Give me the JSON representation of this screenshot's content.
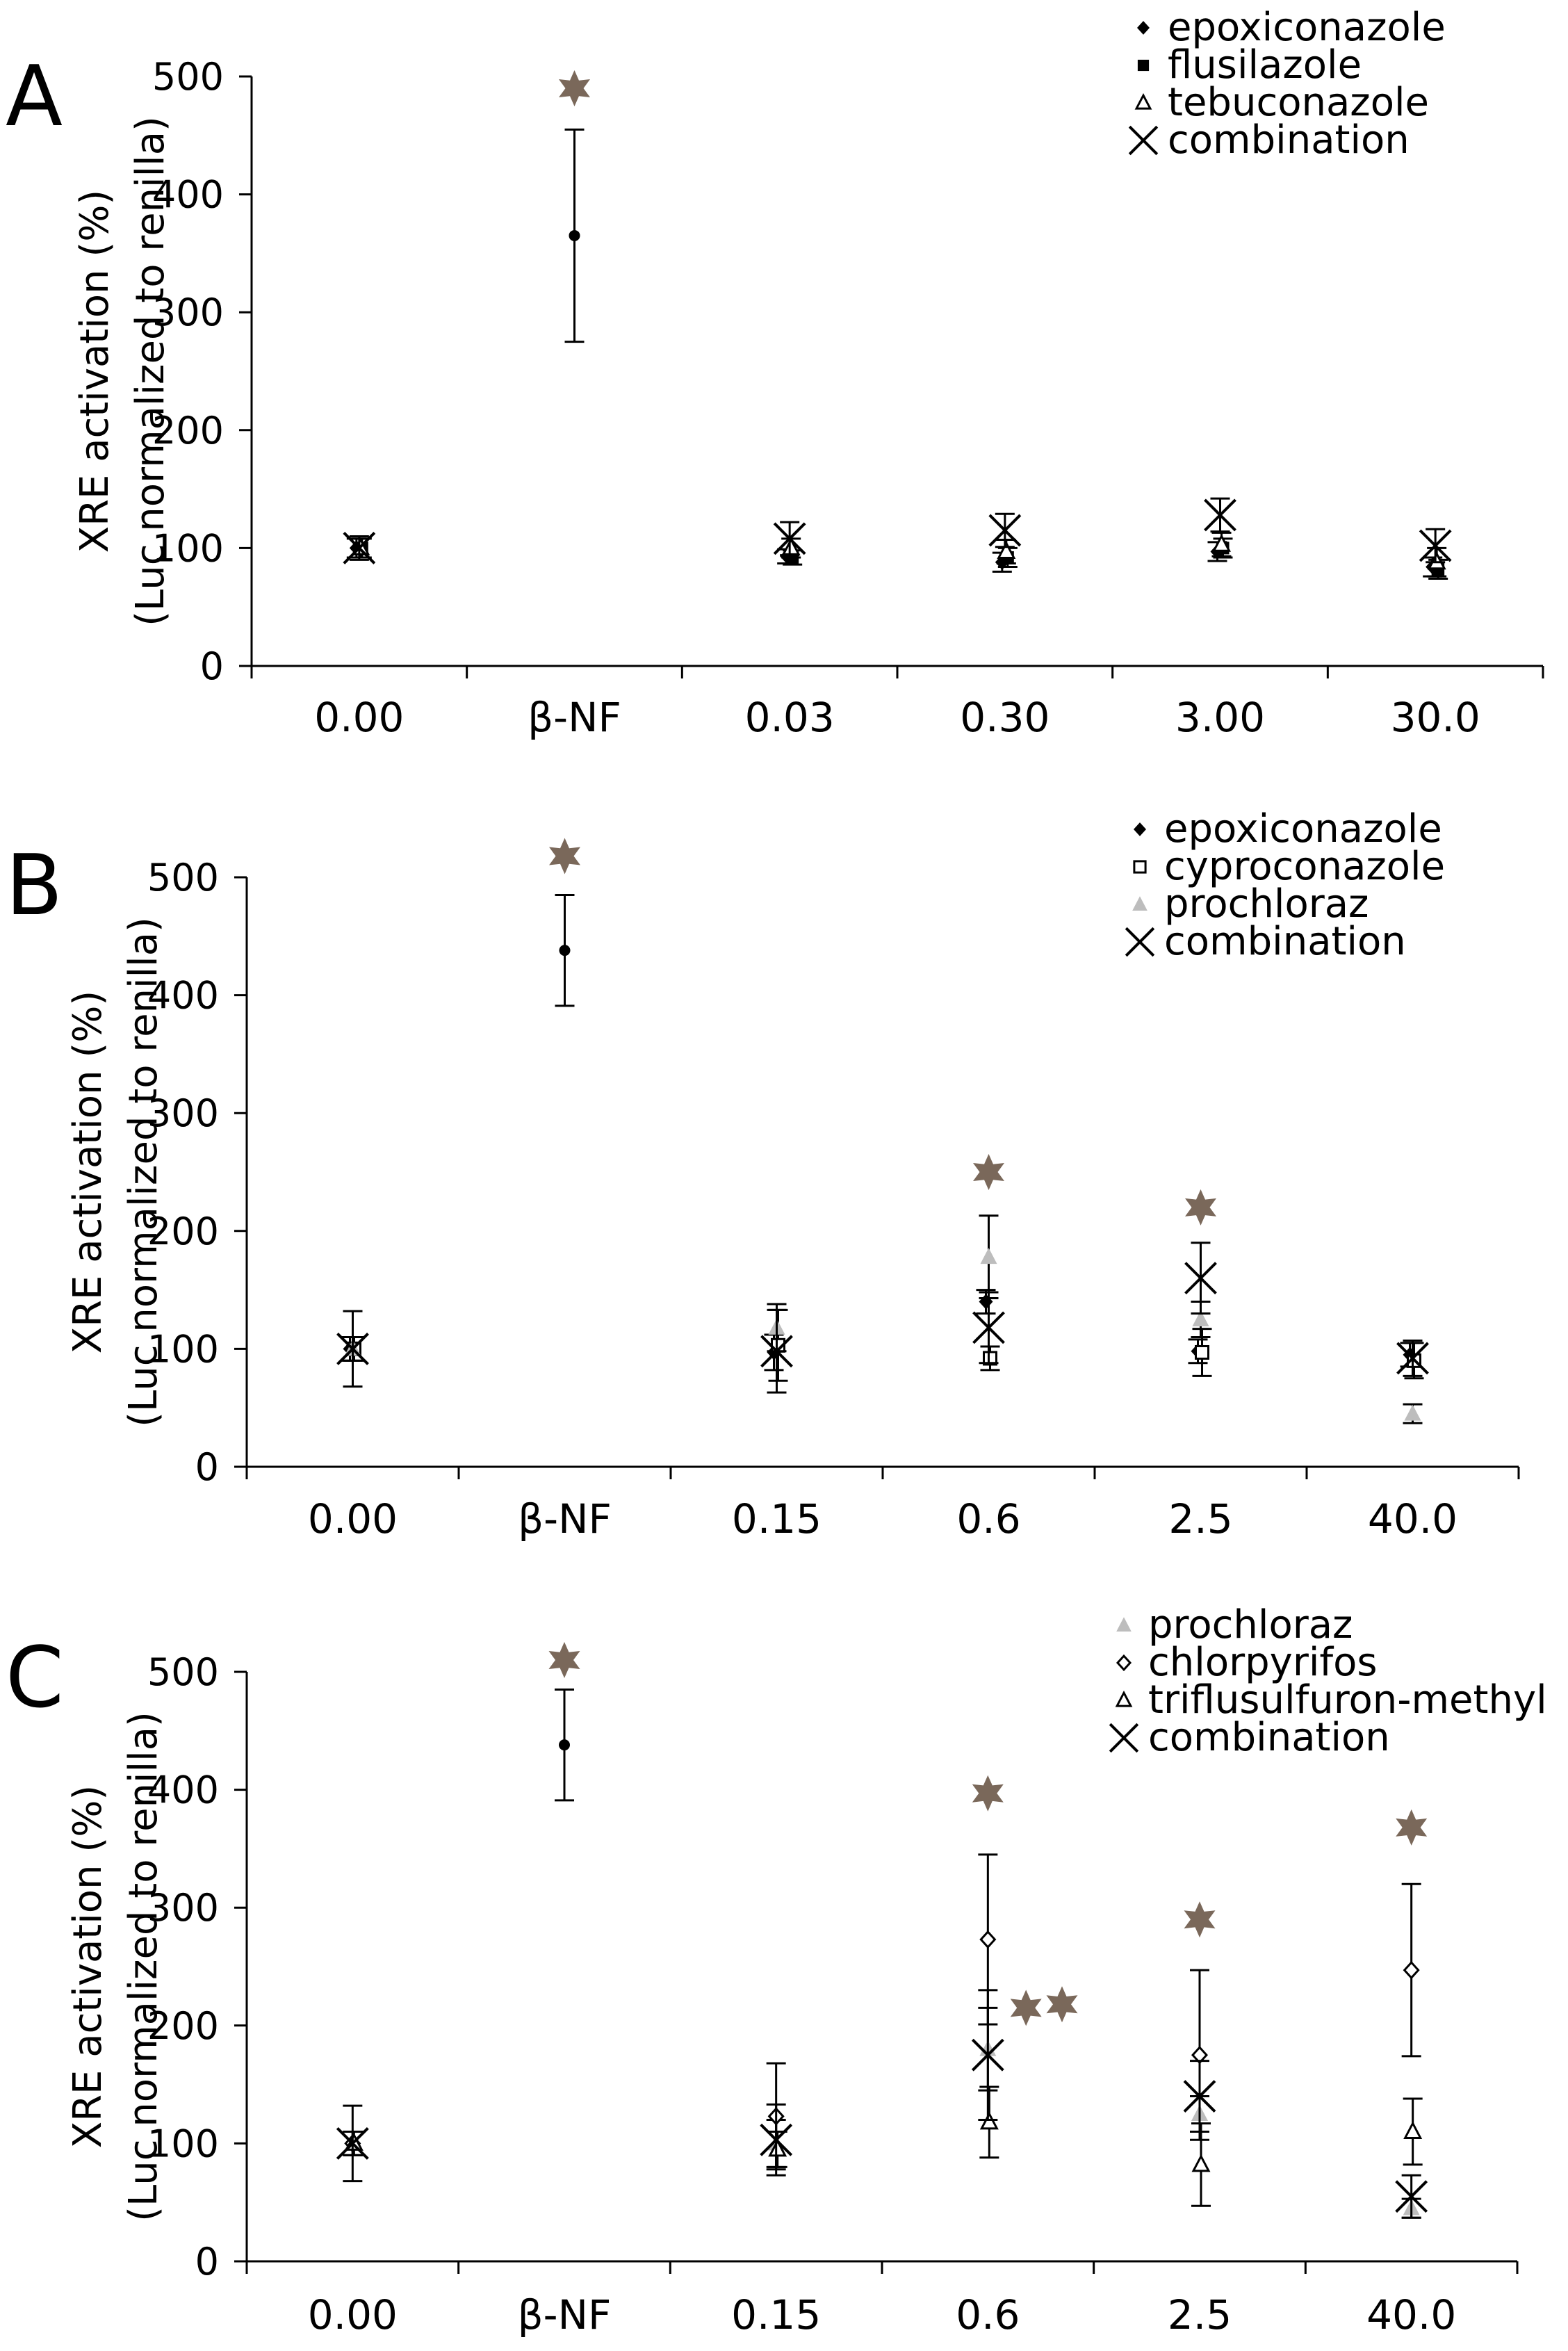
{
  "colors": {
    "star": "#7a685a",
    "axis": "#000000",
    "prochloraz": "#bdbdbd",
    "black": "#000000",
    "white": "#ffffff"
  },
  "chart_data": [
    {
      "type": "scatter",
      "panel": "A",
      "ylabel": "XRE activation (%)",
      "ylabel2": "(Luc normalized to renilla)",
      "ylim": [
        0,
        500
      ],
      "yticks": [
        0,
        100,
        200,
        300,
        400,
        500
      ],
      "categories": [
        "0.00",
        "β-NF",
        "0.03",
        "0.30",
        "3.00",
        "30.0"
      ],
      "legend_position": "top-right",
      "legend": [
        {
          "label": "epoxiconazole",
          "marker": "diamond-filled"
        },
        {
          "label": "flusilazole",
          "marker": "square-filled"
        },
        {
          "label": "tebuconazole",
          "marker": "triangle-open"
        },
        {
          "label": "combination",
          "marker": "x"
        }
      ],
      "series": [
        {
          "name": "β-NF",
          "marker": "dot",
          "points": [
            {
              "x": 1,
              "y": 365,
              "err": 90
            }
          ]
        },
        {
          "name": "epoxiconazole",
          "marker": "diamond-filled",
          "points": [
            {
              "x": 0,
              "y": 100,
              "err": 8
            },
            {
              "x": 2,
              "y": 93,
              "err": 6
            },
            {
              "x": 3,
              "y": 88,
              "err": 8
            },
            {
              "x": 4,
              "y": 97,
              "err": 8
            },
            {
              "x": 5,
              "y": 84,
              "err": 8
            }
          ]
        },
        {
          "name": "flusilazole",
          "marker": "square-filled",
          "points": [
            {
              "x": 0,
              "y": 100,
              "err": 8
            },
            {
              "x": 2,
              "y": 92,
              "err": 6
            },
            {
              "x": 3,
              "y": 92,
              "err": 8
            },
            {
              "x": 4,
              "y": 100,
              "err": 8
            },
            {
              "x": 5,
              "y": 82,
              "err": 8
            }
          ]
        },
        {
          "name": "tebuconazole",
          "marker": "triangle-open",
          "points": [
            {
              "x": 0,
              "y": 100,
              "err": 8
            },
            {
              "x": 2,
              "y": 100,
              "err": 8
            },
            {
              "x": 3,
              "y": 97,
              "err": 10
            },
            {
              "x": 4,
              "y": 103,
              "err": 10
            },
            {
              "x": 5,
              "y": 88,
              "err": 12
            }
          ]
        },
        {
          "name": "combination",
          "marker": "x",
          "points": [
            {
              "x": 0,
              "y": 100,
              "err": 10
            },
            {
              "x": 2,
              "y": 108,
              "err": 14
            },
            {
              "x": 3,
              "y": 115,
              "err": 14
            },
            {
              "x": 4,
              "y": 128,
              "err": 14
            },
            {
              "x": 5,
              "y": 102,
              "err": 14
            }
          ]
        }
      ],
      "stars": [
        {
          "x": 1,
          "y": 490
        }
      ]
    },
    {
      "type": "scatter",
      "panel": "B",
      "ylabel": "XRE activation (%)",
      "ylabel2": "(Luc normalized to renilla)",
      "ylim": [
        0,
        500
      ],
      "yticks": [
        0,
        100,
        200,
        300,
        400,
        500
      ],
      "categories": [
        "0.00",
        "β-NF",
        "0.15",
        "0.6",
        "2.5",
        "40.0"
      ],
      "legend_position": "top-right",
      "legend": [
        {
          "label": "epoxiconazole",
          "marker": "diamond-filled"
        },
        {
          "label": "cyproconazole",
          "marker": "square-open"
        },
        {
          "label": "prochloraz",
          "marker": "triangle-gray"
        },
        {
          "label": "combination",
          "marker": "x"
        }
      ],
      "series": [
        {
          "name": "β-NF",
          "marker": "dot",
          "points": [
            {
              "x": 1,
              "y": 438,
              "err": 47
            }
          ]
        },
        {
          "name": "epoxiconazole",
          "marker": "diamond-filled",
          "points": [
            {
              "x": 0,
              "y": 100,
              "err": 10
            },
            {
              "x": 2,
              "y": 97,
              "err": 15
            },
            {
              "x": 3,
              "y": 140,
              "err": 10
            },
            {
              "x": 4,
              "y": 98,
              "err": 10
            },
            {
              "x": 5,
              "y": 95,
              "err": 10
            }
          ]
        },
        {
          "name": "cyproconazole",
          "marker": "square-open",
          "points": [
            {
              "x": 0,
              "y": 100,
              "err": 10
            },
            {
              "x": 2,
              "y": 103,
              "err": 30
            },
            {
              "x": 3,
              "y": 92,
              "err": 10
            },
            {
              "x": 4,
              "y": 97,
              "err": 20
            },
            {
              "x": 5,
              "y": 90,
              "err": 15
            }
          ]
        },
        {
          "name": "prochloraz",
          "marker": "triangle-gray",
          "points": [
            {
              "x": 0,
              "y": 100,
              "err": 10
            },
            {
              "x": 2,
              "y": 118,
              "err": 20
            },
            {
              "x": 3,
              "y": 178,
              "err": 35
            },
            {
              "x": 4,
              "y": 125,
              "err": 15
            },
            {
              "x": 5,
              "y": 45,
              "err": 8
            }
          ]
        },
        {
          "name": "combination",
          "marker": "x",
          "points": [
            {
              "x": 0,
              "y": 100,
              "err": 32
            },
            {
              "x": 2,
              "y": 98,
              "err": 35
            },
            {
              "x": 3,
              "y": 118,
              "err": 30
            },
            {
              "x": 4,
              "y": 160,
              "err": 30
            },
            {
              "x": 5,
              "y": 92,
              "err": 15
            }
          ]
        }
      ],
      "stars": [
        {
          "x": 1,
          "y": 518
        },
        {
          "x": 3,
          "y": 250
        },
        {
          "x": 4,
          "y": 220
        }
      ]
    },
    {
      "type": "scatter",
      "panel": "C",
      "ylabel": "XRE activation (%)",
      "ylabel2": "(Luc normalized to renilla)",
      "ylim": [
        0,
        500
      ],
      "yticks": [
        0,
        100,
        200,
        300,
        400,
        500
      ],
      "categories": [
        "0.00",
        "β-NF",
        "0.15",
        "0.6",
        "2.5",
        "40.0"
      ],
      "legend_position": "top-right",
      "legend": [
        {
          "label": "prochloraz",
          "marker": "triangle-gray"
        },
        {
          "label": "chlorpyrifos",
          "marker": "diamond-open"
        },
        {
          "label": "triflusulfuron-methyl",
          "marker": "triangle-open"
        },
        {
          "label": "combination",
          "marker": "x"
        }
      ],
      "series": [
        {
          "name": "β-NF",
          "marker": "dot",
          "points": [
            {
              "x": 1,
              "y": 438,
              "err": 47
            }
          ]
        },
        {
          "name": "prochloraz",
          "marker": "triangle-gray",
          "points": [
            {
              "x": 0,
              "y": 100,
              "err": 10
            },
            {
              "x": 2,
              "y": 100,
              "err": 20
            },
            {
              "x": 3,
              "y": 180,
              "err": 35
            },
            {
              "x": 4,
              "y": 125,
              "err": 15
            },
            {
              "x": 5,
              "y": 45,
              "err": 8
            }
          ]
        },
        {
          "name": "chlorpyrifos",
          "marker": "diamond-open",
          "points": [
            {
              "x": 0,
              "y": 100,
              "err": 10
            },
            {
              "x": 2,
              "y": 123,
              "err": 45
            },
            {
              "x": 3,
              "y": 273,
              "err": 72
            },
            {
              "x": 4,
              "y": 175,
              "err": 72
            },
            {
              "x": 5,
              "y": 247,
              "err": 73
            }
          ]
        },
        {
          "name": "triflusulfuron-methyl",
          "marker": "triangle-open",
          "points": [
            {
              "x": 0,
              "y": 100,
              "err": 10
            },
            {
              "x": 2,
              "y": 95,
              "err": 15
            },
            {
              "x": 3,
              "y": 118,
              "err": 30
            },
            {
              "x": 4,
              "y": 82,
              "err": 35
            },
            {
              "x": 5,
              "y": 110,
              "err": 28
            }
          ]
        },
        {
          "name": "combination",
          "marker": "x",
          "points": [
            {
              "x": 0,
              "y": 100,
              "err": 32
            },
            {
              "x": 2,
              "y": 103,
              "err": 30
            },
            {
              "x": 3,
              "y": 175,
              "err": 55
            },
            {
              "x": 4,
              "y": 140,
              "err": 30
            },
            {
              "x": 5,
              "y": 55,
              "err": 18
            }
          ]
        }
      ],
      "stars": [
        {
          "x": 1,
          "y": 510
        },
        {
          "x": 3,
          "y": 397
        },
        {
          "x": 3.18,
          "y": 215
        },
        {
          "x": 3.35,
          "y": 218
        },
        {
          "x": 4,
          "y": 290
        },
        {
          "x": 5,
          "y": 368
        }
      ]
    }
  ]
}
